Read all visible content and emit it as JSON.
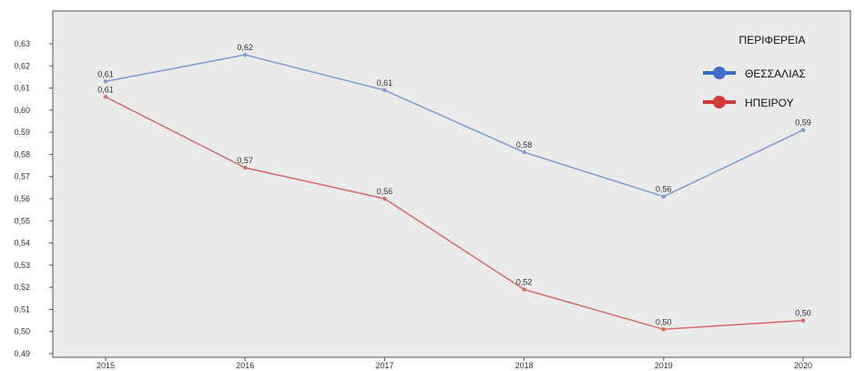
{
  "chart_data": {
    "type": "line",
    "categories": [
      "2015",
      "2016",
      "2017",
      "2018",
      "2019",
      "2020"
    ],
    "ylim": [
      0.49,
      0.63
    ],
    "yticks": [
      "0,49",
      "0,50",
      "0,51",
      "0,52",
      "0,53",
      "0,54",
      "0,55",
      "0,56",
      "0,57",
      "0,58",
      "0,59",
      "0,60",
      "0,61",
      "0,62",
      "0,63"
    ],
    "grid": false,
    "legend": {
      "title": "ΠΕΡΙΦΕΡΕΙΑ",
      "placement": "top-right"
    },
    "series": [
      {
        "name": "ΘΕΣΣΑΛΙΑΣ",
        "color": "#7f9bd8",
        "legend_color": "#3f6cc4",
        "values": [
          0.613,
          0.625,
          0.609,
          0.581,
          0.561,
          0.591
        ],
        "labels": [
          "0,61",
          "0,62",
          "0,61",
          "0,58",
          "0,56",
          "0,59"
        ]
      },
      {
        "name": "ΗΠΕΙΡΟΥ",
        "color": "#d96a6a",
        "legend_color": "#d43a3a",
        "values": [
          0.606,
          0.574,
          0.56,
          0.519,
          0.501,
          0.505
        ],
        "labels": [
          "0,61",
          "0,57",
          "0,56",
          "0,52",
          "0,50",
          "0,50"
        ]
      }
    ]
  }
}
